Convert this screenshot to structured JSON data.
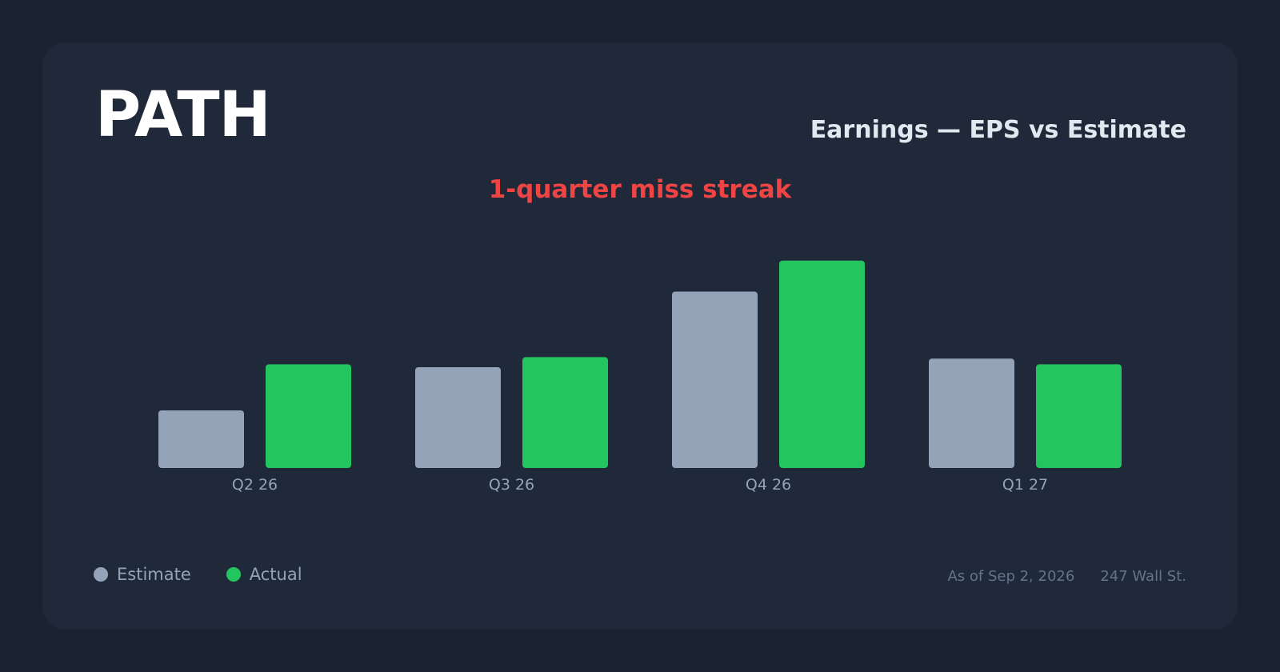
{
  "header": {
    "ticker": "PATH",
    "title": "Earnings — EPS vs Estimate",
    "streak_label": "1-quarter miss streak"
  },
  "legend": {
    "estimate_label": "Estimate",
    "actual_label": "Actual"
  },
  "footer": {
    "as_of": "As of Sep 2, 2026",
    "source": "247 Wall St."
  },
  "colors": {
    "estimate": "#94a3b8",
    "actual": "#22c55e",
    "miss": "#ef4444",
    "background": "#1a2230",
    "card": "#1f293a"
  },
  "chart_data": {
    "type": "bar",
    "categories": [
      "Q2 26",
      "Q3 26",
      "Q4 26",
      "Q1 27"
    ],
    "series": [
      {
        "name": "Estimate",
        "values": [
          0.08,
          0.14,
          0.245,
          0.152
        ]
      },
      {
        "name": "Actual",
        "values": [
          0.144,
          0.154,
          0.288,
          0.144
        ]
      }
    ],
    "ylim": [
      0,
      0.3
    ],
    "grid": false,
    "legend_position": "bottom-left"
  }
}
